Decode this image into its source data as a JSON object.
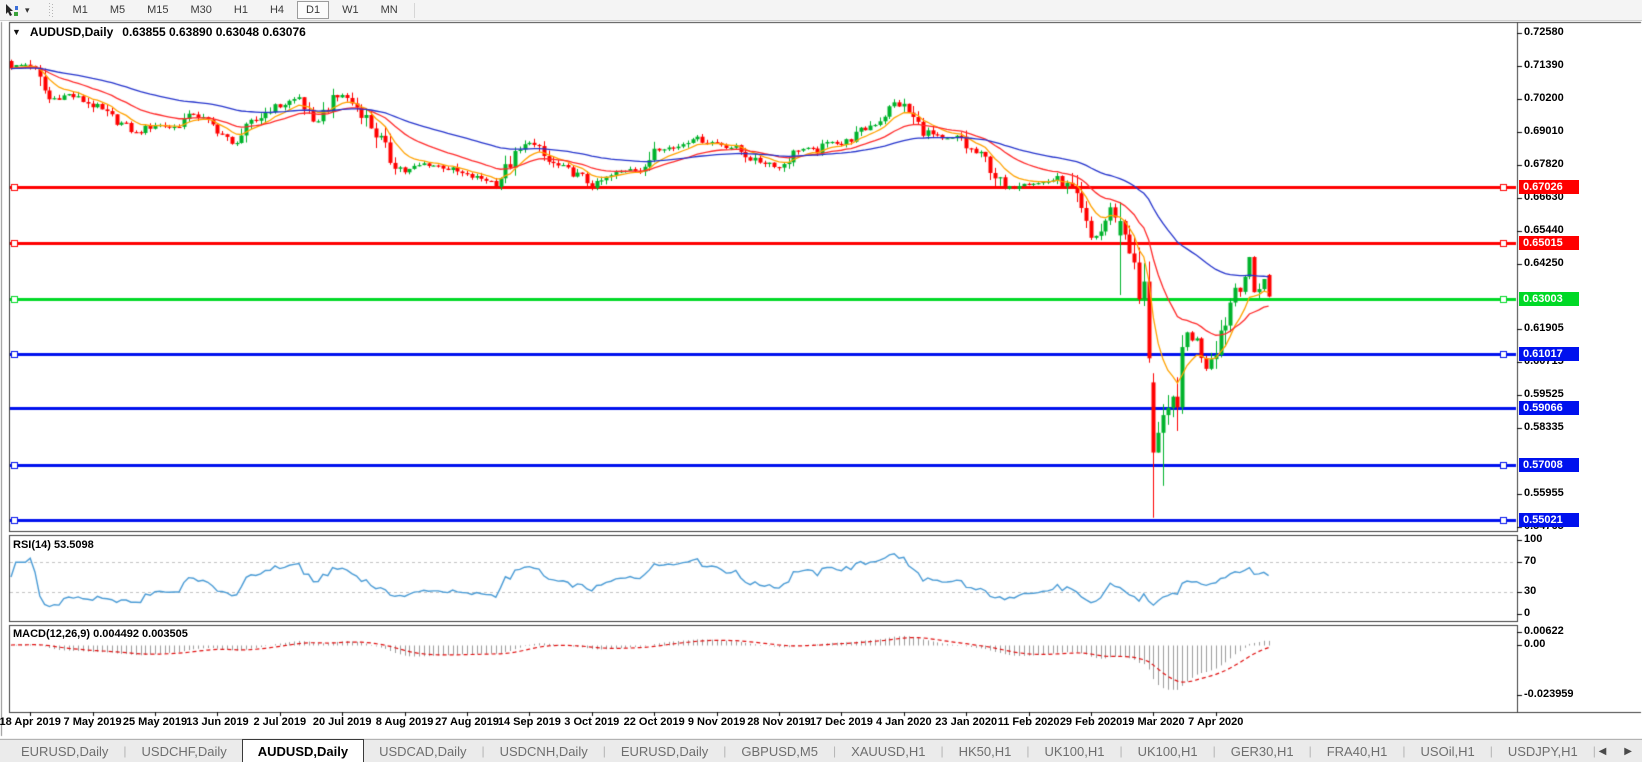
{
  "toolbar": {
    "caret_icon": "▾",
    "timeframes": [
      "M1",
      "M5",
      "M15",
      "M30",
      "H1",
      "H4",
      "D1",
      "W1",
      "MN"
    ],
    "active_timeframe": "D1"
  },
  "chart": {
    "title": {
      "collapse_icon": "▼",
      "symbol": "AUDUSD,Daily",
      "values": "0.63855 0.63890 0.63048 0.63076"
    },
    "price_axis": {
      "ticks": [
        "0.72580",
        "0.71390",
        "0.70200",
        "0.69010",
        "0.67820",
        "0.66630",
        "0.65440",
        "0.64250",
        "0.61905",
        "0.60715",
        "0.59525",
        "0.58335",
        "0.55955",
        "0.54765"
      ]
    },
    "hlines": [
      {
        "value": 0.67026,
        "label": "0.67026",
        "color": "#ff0000",
        "handles": true
      },
      {
        "value": 0.65015,
        "label": "0.65015",
        "color": "#ff0000",
        "handles": true
      },
      {
        "value": 0.63003,
        "label": "0.63003",
        "color": "#00d926",
        "handles": true
      },
      {
        "value": 0.61017,
        "label": "0.61017",
        "color": "#0011ee",
        "handles": true
      },
      {
        "value": 0.59066,
        "label": "0.59066",
        "color": "#0011ee",
        "handles": false
      },
      {
        "value": 0.57008,
        "label": "0.57008",
        "color": "#0011ee",
        "handles": true
      },
      {
        "value": 0.55021,
        "label": "0.55021",
        "color": "#0011ee",
        "handles": true
      }
    ],
    "rsi": {
      "label": "RSI(14) 53.5098",
      "value": 53.5098,
      "period": 14,
      "levels": [
        70,
        30
      ],
      "ticks": [
        {
          "label": "100",
          "value": 100
        },
        {
          "label": "70",
          "value": 70
        },
        {
          "label": "30",
          "value": 30
        },
        {
          "label": "0",
          "value": 0
        }
      ]
    },
    "macd": {
      "label": "MACD(12,26,9) 0.004492 0.003505",
      "params": [
        12,
        26,
        9
      ],
      "values": [
        0.004492,
        0.003505
      ],
      "ticks": [
        {
          "label": "0.00622",
          "value": 0.00622
        },
        {
          "label": "0.00",
          "value": 0.0
        },
        {
          "label": "-0.023959",
          "value": -0.023959
        }
      ]
    },
    "dates": [
      {
        "label": "18 Apr 2019",
        "bar": 4
      },
      {
        "label": "7 May 2019",
        "bar": 17
      },
      {
        "label": "25 May 2019",
        "bar": 30
      },
      {
        "label": "13 Jun 2019",
        "bar": 43
      },
      {
        "label": "2 Jul 2019",
        "bar": 56
      },
      {
        "label": "20 Jul 2019",
        "bar": 69
      },
      {
        "label": "8 Aug 2019",
        "bar": 82
      },
      {
        "label": "27 Aug 2019",
        "bar": 95
      },
      {
        "label": "14 Sep 2019",
        "bar": 108
      },
      {
        "label": "3 Oct 2019",
        "bar": 121
      },
      {
        "label": "22 Oct 2019",
        "bar": 134
      },
      {
        "label": "9 Nov 2019",
        "bar": 147
      },
      {
        "label": "28 Nov 2019",
        "bar": 160
      },
      {
        "label": "17 Dec 2019",
        "bar": 173
      },
      {
        "label": "4 Jan 2020",
        "bar": 186
      },
      {
        "label": "23 Jan 2020",
        "bar": 199
      },
      {
        "label": "11 Feb 2020",
        "bar": 212
      },
      {
        "label": "29 Feb 2020",
        "bar": 225
      },
      {
        "label": "19 Mar 2020",
        "bar": 238
      },
      {
        "label": "7 Apr 2020",
        "bar": 251
      }
    ]
  },
  "chart_data": {
    "type": "candlestick",
    "instrument": "AUDUSD",
    "timeframe": "Daily",
    "bars_total": 263,
    "current_bar": {
      "open": 0.63855,
      "high": 0.6389,
      "low": 0.63048,
      "close": 0.63076
    },
    "price_range_labels": {
      "top": 0.7258,
      "bottom": 0.54765
    },
    "close_keyframes": [
      [
        0,
        0.7135
      ],
      [
        4,
        0.7148
      ],
      [
        8,
        0.7018
      ],
      [
        12,
        0.7036
      ],
      [
        17,
        0.6998
      ],
      [
        22,
        0.6942
      ],
      [
        26,
        0.6896
      ],
      [
        30,
        0.6928
      ],
      [
        34,
        0.6918
      ],
      [
        38,
        0.6968
      ],
      [
        43,
        0.6912
      ],
      [
        46,
        0.6855
      ],
      [
        50,
        0.6928
      ],
      [
        54,
        0.6985
      ],
      [
        56,
        0.6995
      ],
      [
        60,
        0.7026
      ],
      [
        63,
        0.6928
      ],
      [
        67,
        0.7014
      ],
      [
        69,
        0.7036
      ],
      [
        73,
        0.6976
      ],
      [
        76,
        0.6898
      ],
      [
        79,
        0.6802
      ],
      [
        82,
        0.6758
      ],
      [
        86,
        0.6786
      ],
      [
        90,
        0.6776
      ],
      [
        95,
        0.6742
      ],
      [
        99,
        0.673
      ],
      [
        101,
        0.6716
      ],
      [
        105,
        0.6812
      ],
      [
        108,
        0.6868
      ],
      [
        112,
        0.6792
      ],
      [
        116,
        0.6762
      ],
      [
        119,
        0.6736
      ],
      [
        121,
        0.6706
      ],
      [
        125,
        0.6742
      ],
      [
        129,
        0.6772
      ],
      [
        132,
        0.6756
      ],
      [
        134,
        0.6852
      ],
      [
        138,
        0.6842
      ],
      [
        142,
        0.6882
      ],
      [
        145,
        0.6866
      ],
      [
        147,
        0.6862
      ],
      [
        151,
        0.6842
      ],
      [
        155,
        0.6796
      ],
      [
        158,
        0.679
      ],
      [
        160,
        0.6772
      ],
      [
        164,
        0.6842
      ],
      [
        168,
        0.6832
      ],
      [
        171,
        0.6872
      ],
      [
        173,
        0.6856
      ],
      [
        177,
        0.6902
      ],
      [
        181,
        0.6948
      ],
      [
        184,
        0.7004
      ],
      [
        186,
        0.6992
      ],
      [
        190,
        0.6906
      ],
      [
        194,
        0.6872
      ],
      [
        198,
        0.6882
      ],
      [
        199,
        0.6846
      ],
      [
        203,
        0.6802
      ],
      [
        207,
        0.6692
      ],
      [
        211,
        0.6722
      ],
      [
        214,
        0.6716
      ],
      [
        218,
        0.6732
      ],
      [
        221,
        0.6686
      ],
      [
        223,
        0.6602
      ],
      [
        225,
        0.6516
      ],
      [
        227,
        0.6542
      ],
      [
        229,
        0.6622
      ],
      [
        231,
        0.658
      ],
      [
        233,
        0.6502
      ],
      [
        235,
        0.6292
      ],
      [
        236,
        0.6322
      ],
      [
        237,
        0.6122
      ],
      [
        238,
        0.5745
      ],
      [
        239,
        0.5806
      ],
      [
        241,
        0.5872
      ],
      [
        243,
        0.5968
      ],
      [
        245,
        0.6172
      ],
      [
        247,
        0.6142
      ],
      [
        249,
        0.6052
      ],
      [
        251,
        0.6136
      ],
      [
        253,
        0.6232
      ],
      [
        255,
        0.6346
      ],
      [
        257,
        0.6382
      ],
      [
        258,
        0.6442
      ],
      [
        259,
        0.6322
      ],
      [
        260,
        0.6356
      ],
      [
        261,
        0.6372
      ],
      [
        262,
        0.63076
      ]
    ],
    "bar_overrides": [
      {
        "bar": 231,
        "open": 0.6528,
        "high": 0.6648,
        "low": 0.6313,
        "close": 0.658
      },
      {
        "bar": 238,
        "open": 0.5998,
        "high": 0.6031,
        "low": 0.551,
        "close": 0.5745
      },
      {
        "bar": 240,
        "low": 0.5625
      },
      {
        "bar": 262,
        "open": 0.63855,
        "high": 0.6389,
        "low": 0.63048,
        "close": 0.63076
      }
    ],
    "moving_averages": [
      {
        "name": "fast",
        "period": 8,
        "color": "#ffa200"
      },
      {
        "name": "mid",
        "period": 21,
        "color": "#ff2a2a"
      },
      {
        "name": "slow",
        "period": 55,
        "color": "#2433cc"
      }
    ],
    "colors": {
      "bull": "#00b32c",
      "bear": "#ff0000",
      "rsi_line": "#4a9bd5",
      "rsi_level_dash": "#c2c2c2",
      "macd_hist": "#9d9d9d",
      "macd_signal": "#e01010"
    }
  },
  "tabs": {
    "separator": "|",
    "active_index": 2,
    "scroll_left_icon": "◀",
    "scroll_right_icon": "▶",
    "items": [
      {
        "label": "EURUSD,Daily"
      },
      {
        "label": "USDCHF,Daily"
      },
      {
        "label": "AUDUSD,Daily"
      },
      {
        "label": "USDCAD,Daily"
      },
      {
        "label": "USDCNH,Daily"
      },
      {
        "label": "EURUSD,Daily"
      },
      {
        "label": "GBPUSD,M5"
      },
      {
        "label": "XAUUSD,H1"
      },
      {
        "label": "HK50,H1"
      },
      {
        "label": "UK100,H1"
      },
      {
        "label": "UK100,H1"
      },
      {
        "label": "GER30,H1"
      },
      {
        "label": "FRA40,H1"
      },
      {
        "label": "USOil,H1"
      },
      {
        "label": "USDJPY,H1"
      }
    ]
  }
}
